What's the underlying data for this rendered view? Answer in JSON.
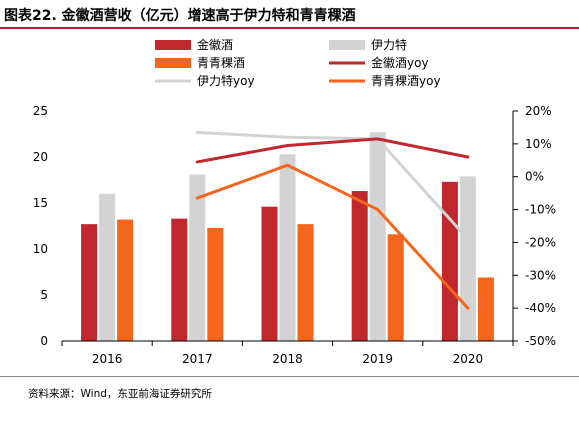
{
  "figure": {
    "title": "图表22. 金徽酒营收（亿元）增速高于伊力特和青青稞酒",
    "source": "资料来源：Wind，东亚前海证券研究所"
  },
  "colors": {
    "jinhui": "#c0282e",
    "yilite": "#d3d3d3",
    "qingqingke": "#f5651d",
    "yilite_yoy": "#d3d3d3",
    "jinhui_yoy": "#c0282e",
    "qingqingke_yoy": "#f5651d"
  },
  "chart_data": {
    "type": "bar",
    "categories": [
      "2016",
      "2017",
      "2018",
      "2019",
      "2020"
    ],
    "series": [
      {
        "name": "金徽酒",
        "kind": "bar",
        "axis": "left",
        "values": [
          12.7,
          13.3,
          14.6,
          16.3,
          17.3
        ]
      },
      {
        "name": "伊力特",
        "kind": "bar",
        "axis": "left",
        "values": [
          16.0,
          18.1,
          20.3,
          22.7,
          17.9
        ]
      },
      {
        "name": "青青稞酒",
        "kind": "bar",
        "axis": "left",
        "values": [
          13.2,
          12.3,
          12.7,
          11.6,
          6.9
        ]
      },
      {
        "name": "金徽酒yoy",
        "kind": "line",
        "axis": "right",
        "values": [
          null,
          4.5,
          9.5,
          11.5,
          6.0
        ]
      },
      {
        "name": "伊力特yoy",
        "kind": "line",
        "axis": "right",
        "values": [
          null,
          13.5,
          12.0,
          11.5,
          -19.0
        ]
      },
      {
        "name": "青青稞酒yoy",
        "kind": "line",
        "axis": "right",
        "values": [
          null,
          -6.5,
          3.5,
          -10.0,
          -40.0
        ]
      }
    ],
    "left_axis": {
      "ylim": [
        0,
        25
      ],
      "ticks": [
        "0",
        "5",
        "10",
        "15",
        "20",
        "25"
      ]
    },
    "right_axis": {
      "ylim": [
        -50,
        20
      ],
      "ticks": [
        "-50%",
        "-40%",
        "-30%",
        "-20%",
        "-10%",
        "0%",
        "10%",
        "20%"
      ]
    },
    "legend_placement": "top"
  }
}
